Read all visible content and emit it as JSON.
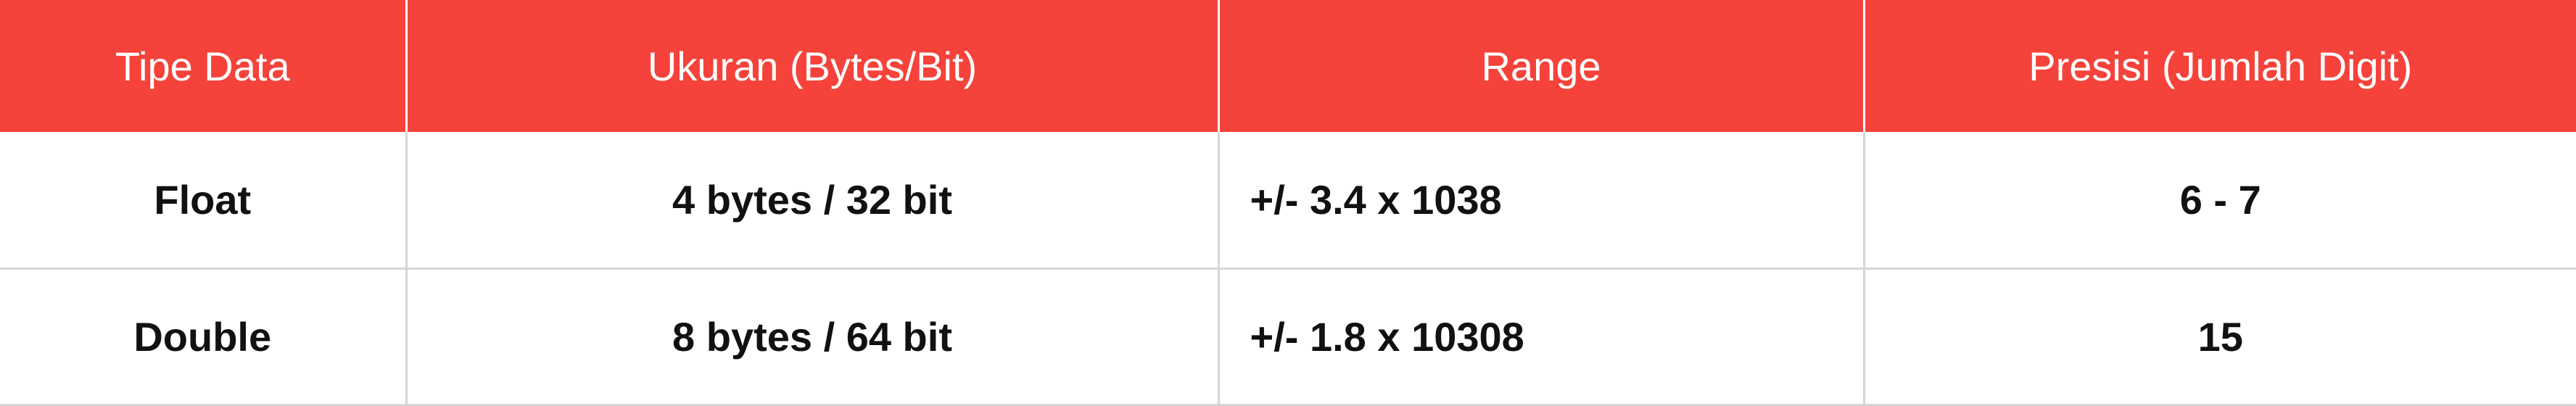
{
  "table": {
    "header_color": "#f5423a",
    "headers": [
      "Tipe Data",
      "Ukuran (Bytes/Bit)",
      "Range",
      "Presisi (Jumlah Digit)"
    ],
    "rows": [
      [
        "Float",
        "4 bytes / 32 bit",
        "+/- 3.4 x 1038",
        "6 - 7"
      ],
      [
        "Double",
        "8 bytes / 64 bit",
        "+/- 1.8 x 10308",
        "15"
      ]
    ]
  }
}
